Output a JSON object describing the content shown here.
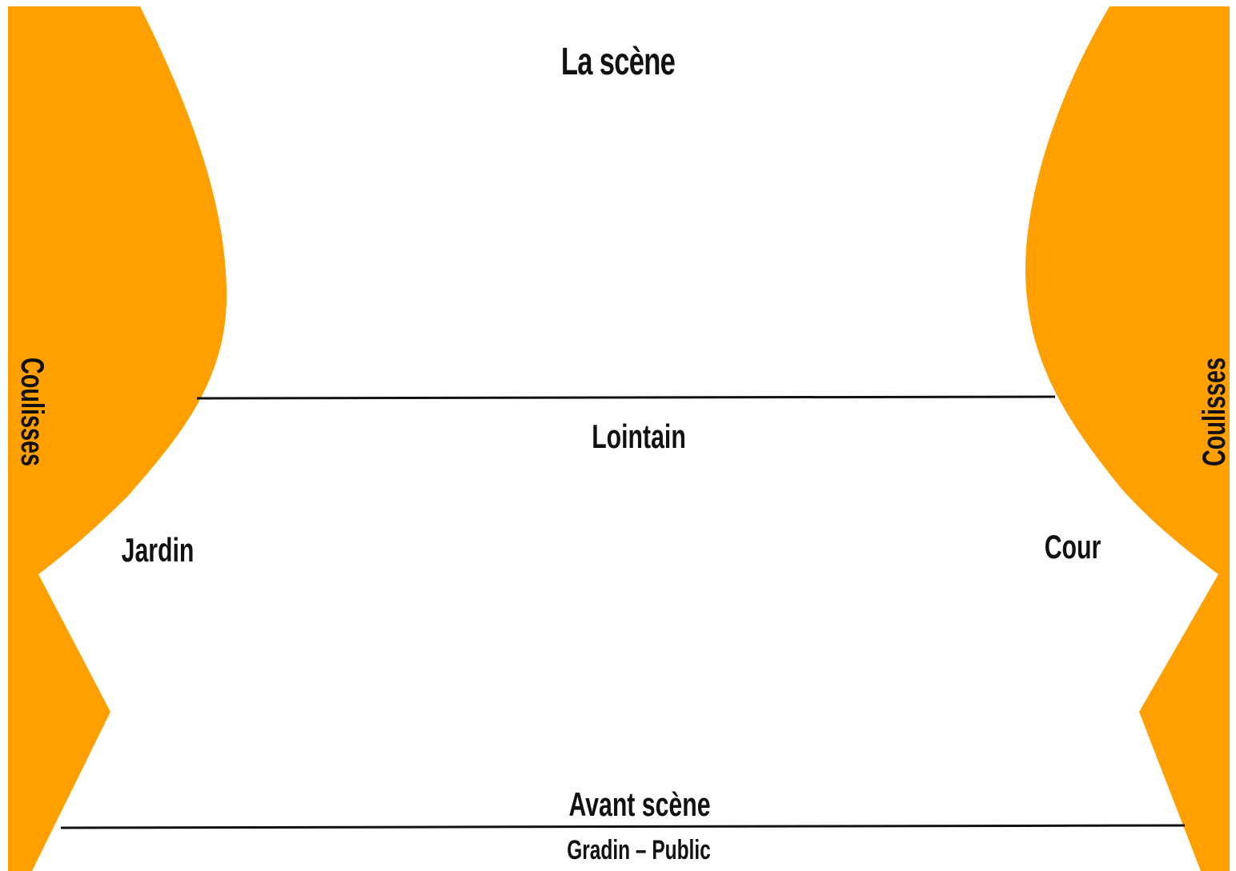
{
  "diagram": {
    "title": "La scène",
    "zones": {
      "back": "Lointain",
      "left_side": "Jardin",
      "right_side": "Cour",
      "front": "Avant scène",
      "audience": "Gradin – Public"
    },
    "wings": {
      "left": "Coulisses",
      "right": "Coulisses"
    }
  },
  "colors": {
    "wing_fill": "#FFA000",
    "line": "#111111",
    "text": "#111111",
    "background": "#FFFFFF"
  }
}
